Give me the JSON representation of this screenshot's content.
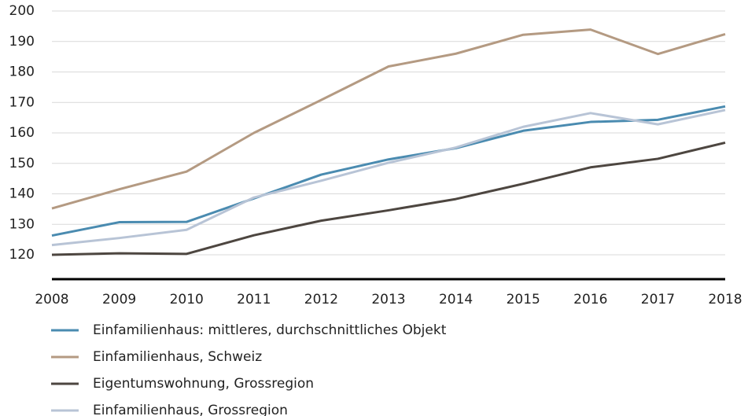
{
  "chart_data": {
    "type": "line",
    "x": [
      2008,
      2009,
      2010,
      2011,
      2012,
      2013,
      2014,
      2015,
      2016,
      2017,
      2018
    ],
    "xlim": [
      2008,
      2018
    ],
    "xticks": [
      2008,
      2009,
      2010,
      2011,
      2012,
      2013,
      2014,
      2015,
      2016,
      2017,
      2018
    ],
    "ylim": [
      112,
      200
    ],
    "yticks": [
      120,
      130,
      140,
      150,
      160,
      170,
      180,
      190,
      200
    ],
    "grid": true,
    "legend": "bottom",
    "series": [
      {
        "name": "Einfamilienhaus: mittleres, durchschnittliches Objekt",
        "color": "#4a8bb0",
        "values": [
          126.3,
          130.7,
          130.8,
          138.5,
          146.3,
          151.3,
          155,
          160.7,
          163.6,
          164.3,
          168.7
        ]
      },
      {
        "name": "Einfamilienhaus, Schweiz",
        "color": "#b49a82",
        "values": [
          135.2,
          141.5,
          147.3,
          160,
          170.8,
          181.8,
          186,
          192.2,
          193.9,
          185.9,
          192.4
        ]
      },
      {
        "name": "Eigentumswohnung, Grossregion",
        "color": "#4d4640",
        "values": [
          120,
          120.5,
          120.3,
          126.4,
          131.2,
          134.6,
          138.3,
          143.3,
          148.7,
          151.5,
          156.8
        ]
      },
      {
        "name": "Einfamilienhaus, Grossregion",
        "color": "#b8c4d6",
        "values": [
          123.2,
          125.5,
          128.2,
          138.8,
          144.3,
          150.2,
          155.2,
          162,
          166.5,
          162.8,
          167.5
        ]
      }
    ]
  }
}
